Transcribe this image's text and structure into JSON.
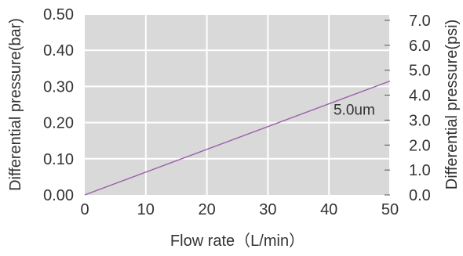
{
  "chart_data": {
    "type": "line",
    "xlabel": "Flow rate（L/min）",
    "ylabel": "Differential pressure(bar)",
    "y2label": "Differential pressure(psi)",
    "xlim": [
      0,
      50
    ],
    "ylim": [
      0,
      0.5
    ],
    "y2lim": [
      0,
      7.25
    ],
    "x_ticks": [
      "0",
      "10",
      "20",
      "30",
      "40",
      "50"
    ],
    "x_tick_values": [
      0,
      10,
      20,
      30,
      40,
      50
    ],
    "y_ticks": [
      "0.00",
      "0.10",
      "0.20",
      "0.30",
      "0.40",
      "0.50"
    ],
    "y_tick_values": [
      0,
      0.1,
      0.2,
      0.3,
      0.4,
      0.5
    ],
    "y2_ticks": [
      "0.0",
      "1.0",
      "2.0",
      "3.0",
      "4.0",
      "5.0",
      "6.0",
      "7.0"
    ],
    "y2_tick_values": [
      0,
      1,
      2,
      3,
      4,
      5,
      6,
      7
    ],
    "grid": true,
    "colors": {
      "plot_background": "#d9d9d9",
      "grid": "#ffffff",
      "line": "#9b5fa8",
      "text": "#333333"
    },
    "series": [
      {
        "name": "5.0um",
        "x": [
          0,
          50
        ],
        "y": [
          0,
          0.315
        ]
      }
    ]
  }
}
